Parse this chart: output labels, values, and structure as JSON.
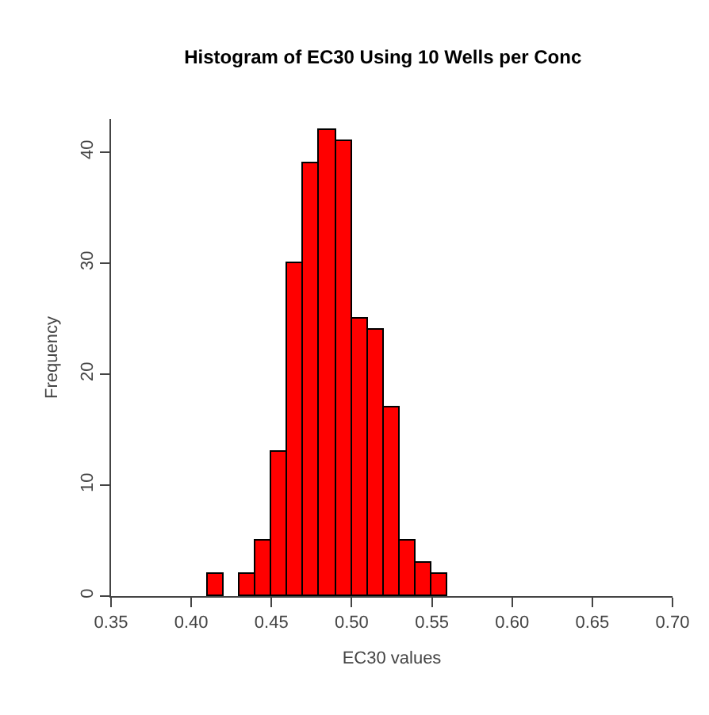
{
  "chart_data": {
    "type": "histogram",
    "title": "Histogram of EC30 Using 10 Wells per Conc",
    "xlabel": "EC30 values",
    "ylabel": "Frequency",
    "bins": [
      0.41,
      0.42,
      0.43,
      0.44,
      0.45,
      0.46,
      0.47,
      0.48,
      0.49,
      0.5,
      0.51,
      0.52,
      0.53,
      0.54,
      0.55,
      0.56
    ],
    "values": [
      2,
      0,
      2,
      5,
      13,
      30,
      39,
      42,
      41,
      25,
      24,
      17,
      5,
      3,
      2
    ],
    "color": "#ff0000",
    "xlim": [
      0.35,
      0.7
    ],
    "xticks": [
      {
        "value": 0.35,
        "label": "0.35"
      },
      {
        "value": 0.4,
        "label": "0.40"
      },
      {
        "value": 0.45,
        "label": "0.45"
      },
      {
        "value": 0.5,
        "label": "0.50"
      },
      {
        "value": 0.55,
        "label": "0.55"
      },
      {
        "value": 0.6,
        "label": "0.60"
      },
      {
        "value": 0.65,
        "label": "0.65"
      },
      {
        "value": 0.7,
        "label": "0.70"
      }
    ],
    "ylim": [
      0,
      43
    ],
    "yticks": [
      0,
      10,
      20,
      30,
      40
    ]
  }
}
